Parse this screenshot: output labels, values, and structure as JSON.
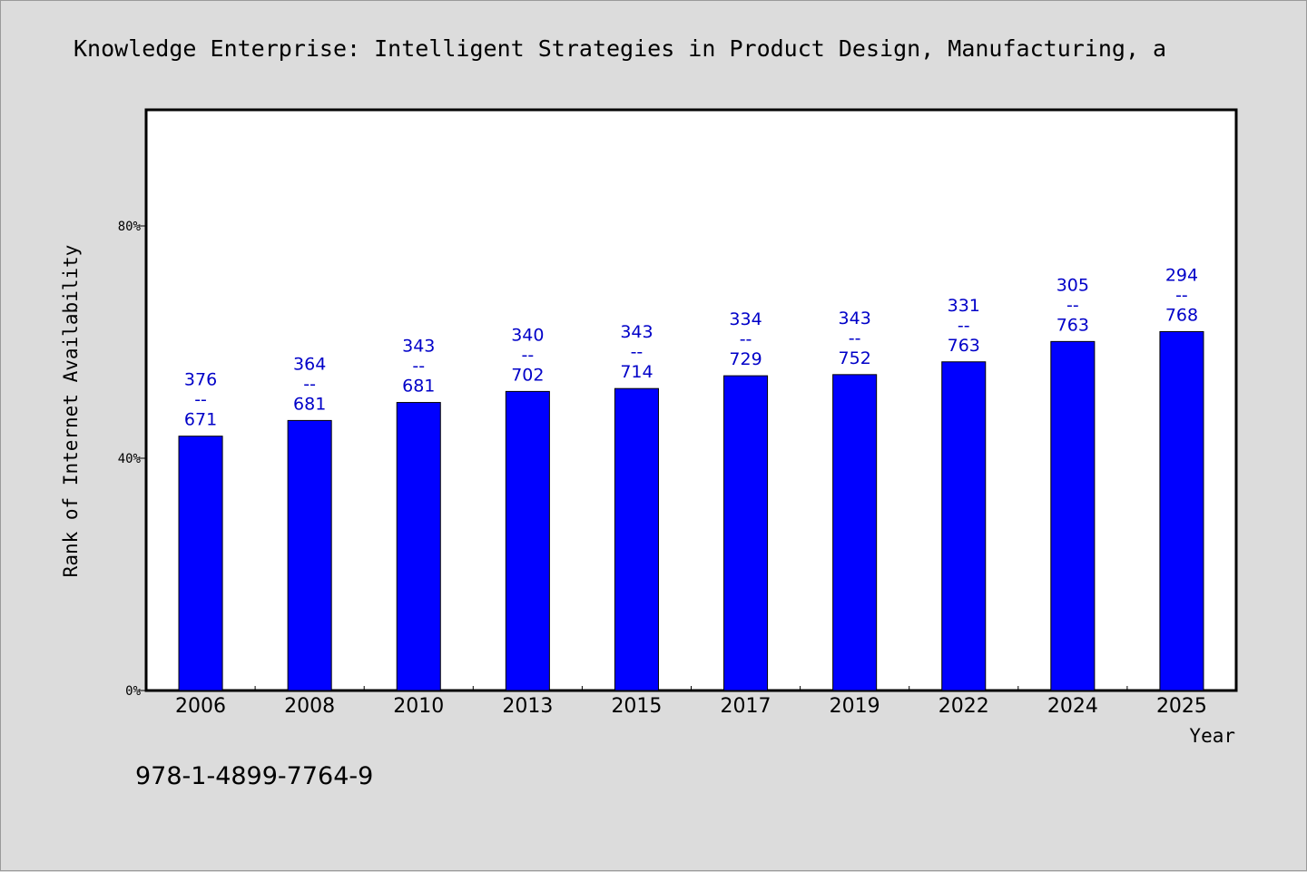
{
  "chart_data": {
    "type": "bar",
    "title": "Knowledge Enterprise: Intelligent Strategies in Product Design, Manufacturing, a",
    "xlabel": "Year",
    "ylabel": "Rank of Internet Availability",
    "categories": [
      "2006",
      "2008",
      "2010",
      "2013",
      "2015",
      "2017",
      "2019",
      "2022",
      "2024",
      "2025"
    ],
    "series": [
      {
        "values": [
          43.8,
          46.5,
          49.6,
          51.5,
          52.0,
          54.2,
          54.4,
          56.6,
          60.1,
          61.8
        ],
        "labels": [
          [
            "376",
            "--",
            "671"
          ],
          [
            "364",
            "--",
            "681"
          ],
          [
            "343",
            "--",
            "681"
          ],
          [
            "340",
            "--",
            "702"
          ],
          [
            "343",
            "--",
            "714"
          ],
          [
            "334",
            "--",
            "729"
          ],
          [
            "343",
            "--",
            "752"
          ],
          [
            "331",
            "--",
            "763"
          ],
          [
            "305",
            "--",
            "763"
          ],
          [
            "294",
            "--",
            "768"
          ]
        ]
      }
    ],
    "ylim": [
      0,
      100
    ],
    "yticks": [
      0,
      40,
      80
    ],
    "ytick_labels": [
      "0%",
      "40%",
      "80%"
    ],
    "grid": false,
    "bar_color": "#0000ff",
    "label_color": "#0000c8"
  },
  "footer": {
    "isbn": "978-1-4899-7764-9"
  }
}
